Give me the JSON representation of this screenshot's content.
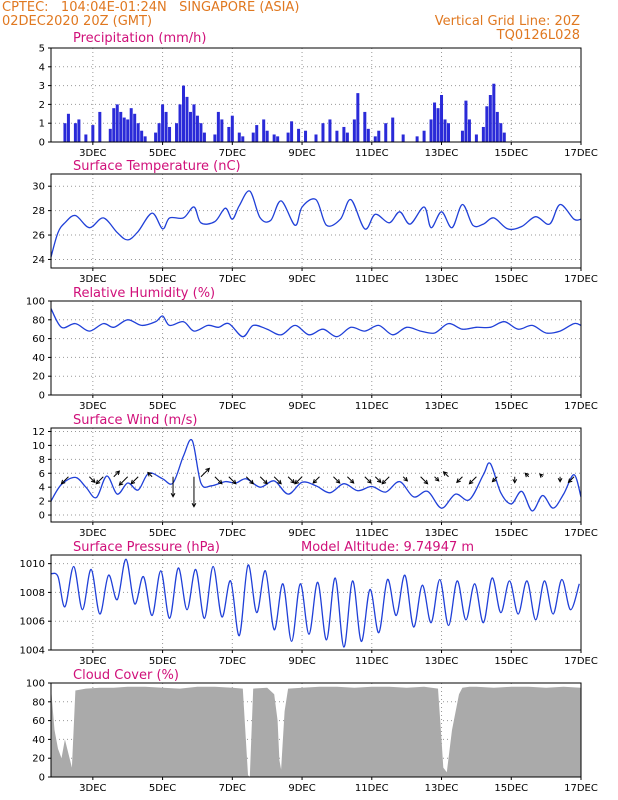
{
  "header": {
    "line1": "CPTEC:   104:04E-01:24N   SINGAPORE (ASIA)",
    "line2": "02DEC2020 20Z (GMT)",
    "right1": "Vertical Grid Line: 20Z",
    "right2": "TQ0126L028"
  },
  "colors": {
    "line": "#2040d8",
    "bars": "#2a2ad8",
    "cloud": "#aaaaaa",
    "title": "#d0107a",
    "header": "#e07820"
  },
  "x_ticks": [
    "3DEC",
    "5DEC",
    "7DEC",
    "9DEC",
    "11DEC",
    "13DEC",
    "15DEC",
    "17DEC"
  ],
  "chart_data": [
    {
      "id": "precip",
      "type": "bar",
      "title": "Precipitation (mm/h)",
      "ylim": [
        0,
        5
      ],
      "yticks": [
        0,
        1,
        2,
        3,
        4,
        5
      ],
      "x": [
        2.2,
        2.3,
        2.5,
        2.6,
        2.8,
        3.0,
        3.2,
        3.5,
        3.6,
        3.7,
        3.8,
        3.9,
        4.0,
        4.1,
        4.2,
        4.3,
        4.4,
        4.5,
        4.8,
        4.9,
        5.0,
        5.1,
        5.2,
        5.4,
        5.5,
        5.6,
        5.7,
        5.8,
        5.9,
        6.0,
        6.1,
        6.2,
        6.5,
        6.6,
        6.7,
        6.9,
        7.0,
        7.2,
        7.3,
        7.6,
        7.7,
        7.9,
        8.0,
        8.2,
        8.3,
        8.6,
        8.7,
        8.9,
        9.1,
        9.4,
        9.6,
        9.8,
        10.0,
        10.2,
        10.3,
        10.5,
        10.6,
        10.8,
        10.9,
        11.1,
        11.2,
        11.4,
        11.6,
        11.9,
        12.3,
        12.5,
        12.7,
        12.8,
        12.9,
        13.0,
        13.1,
        13.2,
        13.6,
        13.7,
        13.8,
        14.0,
        14.2,
        14.3,
        14.4,
        14.5,
        14.6,
        14.7,
        14.8
      ],
      "values": [
        1.0,
        1.5,
        1.0,
        1.2,
        0.4,
        0.9,
        1.6,
        0.7,
        1.8,
        2.0,
        1.6,
        1.3,
        1.2,
        1.8,
        1.5,
        1.0,
        0.6,
        0.3,
        0.5,
        1.0,
        2.0,
        1.6,
        0.8,
        1.0,
        2.0,
        3.0,
        2.4,
        1.6,
        2.0,
        1.4,
        1.0,
        0.5,
        0.4,
        1.6,
        1.2,
        0.8,
        1.4,
        0.5,
        0.3,
        0.5,
        0.9,
        1.2,
        0.6,
        0.4,
        0.3,
        0.5,
        1.1,
        0.7,
        0.6,
        0.4,
        1.0,
        1.2,
        0.6,
        0.8,
        0.5,
        1.2,
        2.6,
        1.6,
        0.7,
        0.3,
        0.6,
        1.0,
        1.3,
        0.4,
        0.3,
        0.6,
        1.2,
        2.1,
        1.8,
        2.5,
        1.2,
        1.0,
        0.6,
        2.2,
        1.2,
        0.4,
        0.8,
        1.9,
        2.5,
        3.1,
        1.6,
        1.0,
        0.5
      ]
    },
    {
      "id": "temp",
      "type": "line",
      "title": "Surface Temperature (nC)",
      "ylim": [
        23.3,
        31
      ],
      "yticks": [
        24,
        26,
        28,
        30
      ],
      "x": [
        1.8,
        2.0,
        2.2,
        2.5,
        2.9,
        3.3,
        3.7,
        4.0,
        4.3,
        4.7,
        5.0,
        5.2,
        5.6,
        5.9,
        6.1,
        6.5,
        6.8,
        7.0,
        7.2,
        7.5,
        7.8,
        8.1,
        8.4,
        8.8,
        9.0,
        9.4,
        9.7,
        10.1,
        10.4,
        10.8,
        11.1,
        11.5,
        11.8,
        12.1,
        12.5,
        12.7,
        13.0,
        13.3,
        13.6,
        13.9,
        14.2,
        14.5,
        14.9,
        15.3,
        15.7,
        16.1,
        16.4,
        16.8,
        17.0
      ],
      "values": [
        24.2,
        26.2,
        27.0,
        27.6,
        26.6,
        27.4,
        26.2,
        25.6,
        26.3,
        27.8,
        26.5,
        27.4,
        27.4,
        28.3,
        27.0,
        27.1,
        28.2,
        27.3,
        28.4,
        29.6,
        27.4,
        27.2,
        28.8,
        26.8,
        28.3,
        28.9,
        26.8,
        27.3,
        28.9,
        26.5,
        27.7,
        27.0,
        27.9,
        26.9,
        28.3,
        26.6,
        27.9,
        26.6,
        28.5,
        26.8,
        26.9,
        27.4,
        26.5,
        26.7,
        27.5,
        26.9,
        28.5,
        27.3,
        27.3
      ]
    },
    {
      "id": "rh",
      "type": "line",
      "title": "Relative Humidity (%)",
      "ylim": [
        0,
        100
      ],
      "yticks": [
        0,
        20,
        40,
        60,
        80,
        100
      ],
      "x": [
        1.8,
        2.1,
        2.5,
        2.9,
        3.3,
        3.6,
        4.0,
        4.4,
        4.8,
        5.0,
        5.2,
        5.6,
        5.9,
        6.3,
        6.6,
        6.9,
        7.3,
        7.6,
        8.0,
        8.4,
        8.8,
        9.2,
        9.6,
        10.0,
        10.4,
        10.8,
        11.2,
        11.6,
        12.0,
        12.4,
        12.8,
        13.2,
        13.6,
        14.0,
        14.4,
        14.8,
        15.2,
        15.6,
        16.0,
        16.4,
        16.8,
        17.0
      ],
      "values": [
        92,
        72,
        76,
        68,
        76,
        72,
        80,
        74,
        78,
        84,
        74,
        78,
        68,
        74,
        72,
        76,
        62,
        74,
        70,
        64,
        74,
        64,
        70,
        62,
        72,
        68,
        74,
        64,
        72,
        68,
        66,
        76,
        70,
        72,
        72,
        78,
        70,
        74,
        66,
        68,
        76,
        74
      ]
    },
    {
      "id": "wind",
      "type": "line",
      "title": "Surface Wind (m/s)",
      "ylim": [
        -1,
        12.5
      ],
      "yticks": [
        0,
        2,
        4,
        6,
        8,
        10,
        12
      ],
      "x": [
        1.8,
        2.1,
        2.5,
        2.8,
        3.1,
        3.4,
        3.7,
        4.0,
        4.3,
        4.6,
        5.0,
        5.3,
        5.6,
        5.85,
        6.1,
        6.4,
        6.8,
        7.1,
        7.4,
        7.8,
        8.2,
        8.6,
        9.0,
        9.4,
        9.8,
        10.2,
        10.6,
        11.0,
        11.4,
        11.8,
        12.2,
        12.6,
        13.0,
        13.4,
        13.8,
        14.2,
        14.4,
        14.7,
        15.0,
        15.3,
        15.6,
        15.9,
        16.2,
        16.5,
        16.8,
        17.0
      ],
      "values": [
        2.0,
        4.4,
        5.4,
        4.0,
        2.5,
        5.6,
        3.0,
        4.6,
        3.6,
        6.0,
        5.2,
        4.6,
        8.5,
        10.7,
        4.6,
        4.2,
        4.8,
        4.6,
        5.2,
        4.0,
        4.9,
        3.0,
        4.7,
        4.2,
        3.2,
        4.5,
        3.5,
        4.1,
        3.3,
        4.8,
        2.6,
        3.4,
        1.0,
        3.0,
        2.2,
        5.8,
        7.4,
        3.2,
        1.6,
        3.4,
        0.6,
        2.8,
        1.0,
        3.0,
        5.8,
        2.6
      ]
    },
    {
      "id": "pressure",
      "type": "line",
      "title": "Surface Pressure (hPa)",
      "annotation": "Model Altitude: 9.74947 m",
      "ylim": [
        1004,
        1010.6
      ],
      "yticks": [
        1004,
        1006,
        1008,
        1010
      ],
      "x": [
        1.8,
        2.0,
        2.2,
        2.45,
        2.7,
        2.95,
        3.2,
        3.45,
        3.7,
        3.95,
        4.2,
        4.45,
        4.7,
        4.95,
        5.2,
        5.45,
        5.7,
        5.95,
        6.2,
        6.45,
        6.7,
        6.95,
        7.2,
        7.45,
        7.7,
        7.95,
        8.2,
        8.45,
        8.7,
        8.95,
        9.2,
        9.45,
        9.7,
        9.95,
        10.2,
        10.45,
        10.7,
        10.95,
        11.2,
        11.45,
        11.7,
        11.95,
        12.2,
        12.45,
        12.7,
        12.95,
        13.2,
        13.45,
        13.7,
        13.95,
        14.2,
        14.45,
        14.7,
        14.95,
        15.2,
        15.45,
        15.7,
        15.95,
        16.2,
        16.45,
        16.7,
        16.95
      ],
      "values": [
        1009.3,
        1009.1,
        1007.0,
        1009.8,
        1006.8,
        1009.6,
        1006.5,
        1009.2,
        1007.5,
        1010.3,
        1007.2,
        1009.1,
        1006.4,
        1009.5,
        1006.2,
        1009.7,
        1006.8,
        1009.6,
        1006.2,
        1009.8,
        1006.3,
        1008.8,
        1005.0,
        1009.9,
        1006.6,
        1009.5,
        1005.4,
        1008.6,
        1004.6,
        1008.6,
        1005.1,
        1008.7,
        1004.7,
        1009.0,
        1004.2,
        1008.8,
        1004.6,
        1008.2,
        1005.2,
        1008.9,
        1006.4,
        1009.2,
        1005.6,
        1008.5,
        1005.9,
        1008.9,
        1005.7,
        1008.8,
        1006.1,
        1008.6,
        1005.9,
        1009.0,
        1006.6,
        1008.8,
        1006.5,
        1008.8,
        1006.1,
        1008.8,
        1006.5,
        1008.9,
        1006.8,
        1008.6
      ]
    },
    {
      "id": "cloud",
      "type": "area",
      "title": "Cloud Cover (%)",
      "ylim": [
        0,
        100
      ],
      "yticks": [
        0,
        20,
        40,
        60,
        80,
        100
      ],
      "x": [
        1.8,
        1.9,
        2.0,
        2.1,
        2.2,
        2.3,
        2.4,
        2.5,
        2.8,
        3.2,
        3.6,
        4.0,
        4.5,
        5.0,
        5.5,
        6.0,
        6.5,
        7.0,
        7.3,
        7.45,
        7.5,
        7.6,
        8.0,
        8.2,
        8.3,
        8.35,
        8.4,
        8.5,
        8.6,
        9.0,
        9.5,
        10.0,
        10.5,
        11.0,
        11.5,
        12.0,
        12.5,
        12.9,
        13.0,
        13.05,
        13.15,
        13.3,
        13.5,
        13.6,
        13.8,
        14.0,
        14.5,
        15.0,
        15.5,
        16.0,
        16.5,
        17.0
      ],
      "values": [
        95,
        50,
        30,
        20,
        40,
        25,
        10,
        92,
        94,
        95,
        95,
        96,
        96,
        95,
        94,
        96,
        96,
        95,
        94,
        2,
        0,
        94,
        95,
        88,
        60,
        18,
        8,
        70,
        94,
        95,
        96,
        96,
        95,
        96,
        96,
        95,
        96,
        94,
        40,
        10,
        5,
        50,
        88,
        95,
        96,
        96,
        95,
        96,
        96,
        95,
        96,
        95
      ]
    }
  ],
  "wind_arrows": [
    {
      "x": 2.3,
      "dir": "sw",
      "len": 1.0
    },
    {
      "x": 2.9,
      "dir": "se",
      "len": 0.8
    },
    {
      "x": 3.3,
      "dir": "sw",
      "len": 1.0
    },
    {
      "x": 3.6,
      "dir": "ne",
      "len": 0.8
    },
    {
      "x": 4.0,
      "dir": "sw",
      "len": 1.2
    },
    {
      "x": 4.3,
      "dir": "sw",
      "len": 1.0
    },
    {
      "x": 4.7,
      "dir": "nw",
      "len": 0.6
    },
    {
      "x": 5.3,
      "dir": "s",
      "len": 2.0
    },
    {
      "x": 5.9,
      "dir": "s",
      "len": 3.0
    },
    {
      "x": 6.1,
      "dir": "ne",
      "len": 1.2
    },
    {
      "x": 6.5,
      "dir": "se",
      "len": 1.0
    },
    {
      "x": 6.9,
      "dir": "se",
      "len": 1.0
    },
    {
      "x": 7.4,
      "dir": "se",
      "len": 1.0
    },
    {
      "x": 7.8,
      "dir": "se",
      "len": 1.0
    },
    {
      "x": 8.2,
      "dir": "se",
      "len": 1.0
    },
    {
      "x": 8.6,
      "dir": "se",
      "len": 0.9
    },
    {
      "x": 9.0,
      "dir": "sw",
      "len": 1.0
    },
    {
      "x": 9.5,
      "dir": "sw",
      "len": 0.9
    },
    {
      "x": 9.9,
      "dir": "se",
      "len": 0.9
    },
    {
      "x": 10.3,
      "dir": "se",
      "len": 0.9
    },
    {
      "x": 10.8,
      "dir": "se",
      "len": 0.9
    },
    {
      "x": 11.1,
      "dir": "se",
      "len": 0.8
    },
    {
      "x": 11.5,
      "dir": "sw",
      "len": 1.0
    },
    {
      "x": 11.9,
      "dir": "se",
      "len": 0.6
    },
    {
      "x": 12.4,
      "dir": "se",
      "len": 1.0
    },
    {
      "x": 12.8,
      "dir": "se",
      "len": 0.6
    },
    {
      "x": 13.2,
      "dir": "nw",
      "len": 0.7
    },
    {
      "x": 13.6,
      "dir": "sw",
      "len": 0.8
    },
    {
      "x": 14.0,
      "dir": "sw",
      "len": 1.0
    },
    {
      "x": 14.6,
      "dir": "sw",
      "len": 0.7
    },
    {
      "x": 15.1,
      "dir": "s",
      "len": 0.6
    },
    {
      "x": 15.5,
      "dir": "nw",
      "len": 0.5
    },
    {
      "x": 15.9,
      "dir": "nw",
      "len": 0.4
    },
    {
      "x": 16.4,
      "dir": "s",
      "len": 0.5
    },
    {
      "x": 16.8,
      "dir": "sw",
      "len": 0.8
    }
  ]
}
